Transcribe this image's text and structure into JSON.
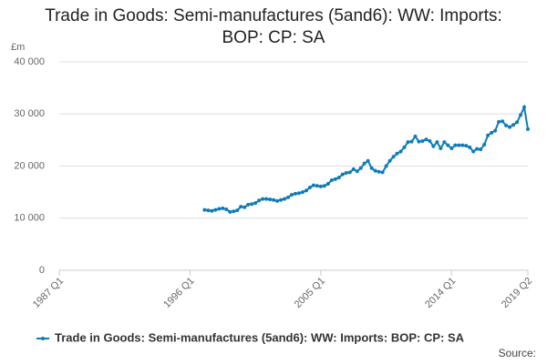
{
  "chart_data": {
    "type": "line",
    "title": "Trade in Goods: Semi-manufactures (5and6): WW: Imports: BOP: CP: SA",
    "y_unit": "£m",
    "source": "Source:",
    "categories": [
      "1987 Q1",
      null,
      null,
      null,
      null,
      null,
      null,
      null,
      null,
      null,
      null,
      null,
      null,
      null,
      null,
      null,
      null,
      null,
      null,
      null,
      null,
      null,
      null,
      null,
      null,
      null,
      null,
      null,
      null,
      null,
      null,
      null,
      null,
      null,
      null,
      null,
      "1996 Q1",
      null,
      null,
      null,
      null,
      null,
      null,
      null,
      null,
      null,
      null,
      null,
      null,
      null,
      null,
      null,
      null,
      null,
      null,
      null,
      null,
      null,
      null,
      null,
      null,
      null,
      null,
      null,
      null,
      null,
      null,
      null,
      null,
      null,
      null,
      null,
      "2005 Q1",
      null,
      null,
      null,
      null,
      null,
      null,
      null,
      null,
      null,
      null,
      null,
      null,
      null,
      null,
      null,
      null,
      null,
      null,
      null,
      null,
      null,
      null,
      null,
      null,
      null,
      null,
      null,
      null,
      null,
      null,
      null,
      null,
      null,
      null,
      null,
      "2014 Q1",
      null,
      null,
      null,
      null,
      null,
      null,
      null,
      null,
      null,
      null,
      null,
      null,
      null,
      null,
      null,
      null,
      null,
      null,
      null,
      null,
      "2019 Q2"
    ],
    "series": [
      {
        "name": "Trade in Goods: Semi-manufactures (5and6): WW: Imports: BOP: CP: SA",
        "color": "#0f7cb8",
        "values": [
          null,
          null,
          null,
          null,
          null,
          null,
          null,
          null,
          null,
          null,
          null,
          null,
          null,
          null,
          null,
          null,
          null,
          null,
          null,
          null,
          null,
          null,
          null,
          null,
          null,
          null,
          null,
          null,
          null,
          null,
          null,
          null,
          null,
          null,
          null,
          null,
          null,
          null,
          null,
          null,
          11600,
          11500,
          11400,
          11600,
          11800,
          11900,
          11700,
          11200,
          11300,
          11500,
          12200,
          12100,
          12600,
          12700,
          12900,
          13400,
          13700,
          13700,
          13600,
          13500,
          13300,
          13500,
          13700,
          14000,
          14500,
          14700,
          14800,
          15000,
          15300,
          15900,
          16300,
          16200,
          16100,
          16200,
          16600,
          17300,
          17500,
          17800,
          18400,
          18700,
          18800,
          19400,
          19000,
          19600,
          20500,
          21000,
          19600,
          19100,
          18900,
          18800,
          20000,
          21000,
          21800,
          22400,
          22800,
          23600,
          24600,
          24700,
          25700,
          24700,
          24800,
          25100,
          24800,
          23800,
          24600,
          23400,
          24600,
          24000,
          23400,
          24000,
          24000,
          24000,
          23900,
          23600,
          22800,
          23300,
          23200,
          24100,
          25900,
          26400,
          26800,
          28500,
          28600,
          27800,
          27500,
          27900,
          28400,
          29800,
          31300,
          27100
        ]
      }
    ],
    "ylim": [
      0,
      40000
    ],
    "yticks": [
      0,
      {
        "value": 10000,
        "label": "10 000"
      },
      {
        "value": 20000,
        "label": "20 000"
      },
      {
        "value": 30000,
        "label": "30 000"
      },
      {
        "value": 40000,
        "label": "40 000"
      }
    ],
    "grid": true
  }
}
